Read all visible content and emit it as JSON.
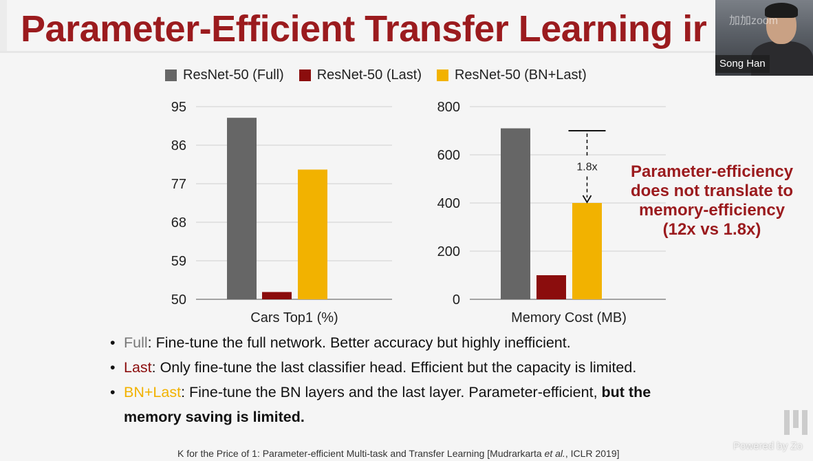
{
  "slide": {
    "title": "Parameter-Efficient Transfer Learning ir",
    "callout_lines": [
      "Parameter-efficiency",
      "does not translate to",
      "memory-efficiency",
      "(12x vs 1.8x)"
    ],
    "bullets": [
      {
        "keyword": "Full",
        "rest": ": Fine-tune the full network. Better accuracy but highly inefficient."
      },
      {
        "keyword": "Last",
        "rest": ": Only fine-tune the last classifier head. Efficient but the capacity is limited."
      },
      {
        "keyword": "BN+Last",
        "rest": ": Fine-tune the BN layers and the last layer. Parameter-efficient, ",
        "bold1": "but the",
        "bold2": "memory saving is limited."
      }
    ],
    "citation_prefix": "K for the Price of 1: Parameter-efficient Multi-task and Transfer Learning [Mudrarkarta ",
    "citation_etal": "et al.",
    "citation_suffix": ", ICLR 2019]",
    "bullet_glyph": "•"
  },
  "webcam": {
    "name": "Song Han",
    "overlay_text": "加加zoom"
  },
  "watermark": {
    "powered_text": "Powered by Zo"
  },
  "colors": {
    "title": "#9b1b1e",
    "full": "#666666",
    "last": "#8b0d0d",
    "bn_last": "#f2b200"
  },
  "chart_data": [
    {
      "type": "bar",
      "xlabel": "Cars Top1 (%)",
      "ylabel": "",
      "ylim": [
        50,
        95
      ],
      "yticks": [
        50,
        59,
        68,
        77,
        86,
        95
      ],
      "grid": true,
      "legend": "top",
      "series": [
        {
          "name": "ResNet-50 (Full)",
          "color": "#666666",
          "values": [
            92.4
          ]
        },
        {
          "name": "ResNet-50 (Last)",
          "color": "#8b0d0d",
          "values": [
            51.7
          ]
        },
        {
          "name": "ResNet-50 (BN+Last)",
          "color": "#f2b200",
          "values": [
            80.3
          ]
        }
      ]
    },
    {
      "type": "bar",
      "xlabel": "Memory Cost (MB)",
      "ylabel": "",
      "ylim": [
        0,
        800
      ],
      "yticks": [
        0,
        200,
        400,
        600,
        800
      ],
      "grid": true,
      "legend": "top",
      "series": [
        {
          "name": "ResNet-50 (Full)",
          "color": "#666666",
          "values": [
            710
          ]
        },
        {
          "name": "ResNet-50 (Last)",
          "color": "#8b0d0d",
          "values": [
            100
          ]
        },
        {
          "name": "ResNet-50 (BN+Last)",
          "color": "#f2b200",
          "values": [
            400
          ]
        }
      ],
      "annotation": {
        "text": "1.8x",
        "from_value": 700,
        "to_value": 400
      }
    }
  ]
}
